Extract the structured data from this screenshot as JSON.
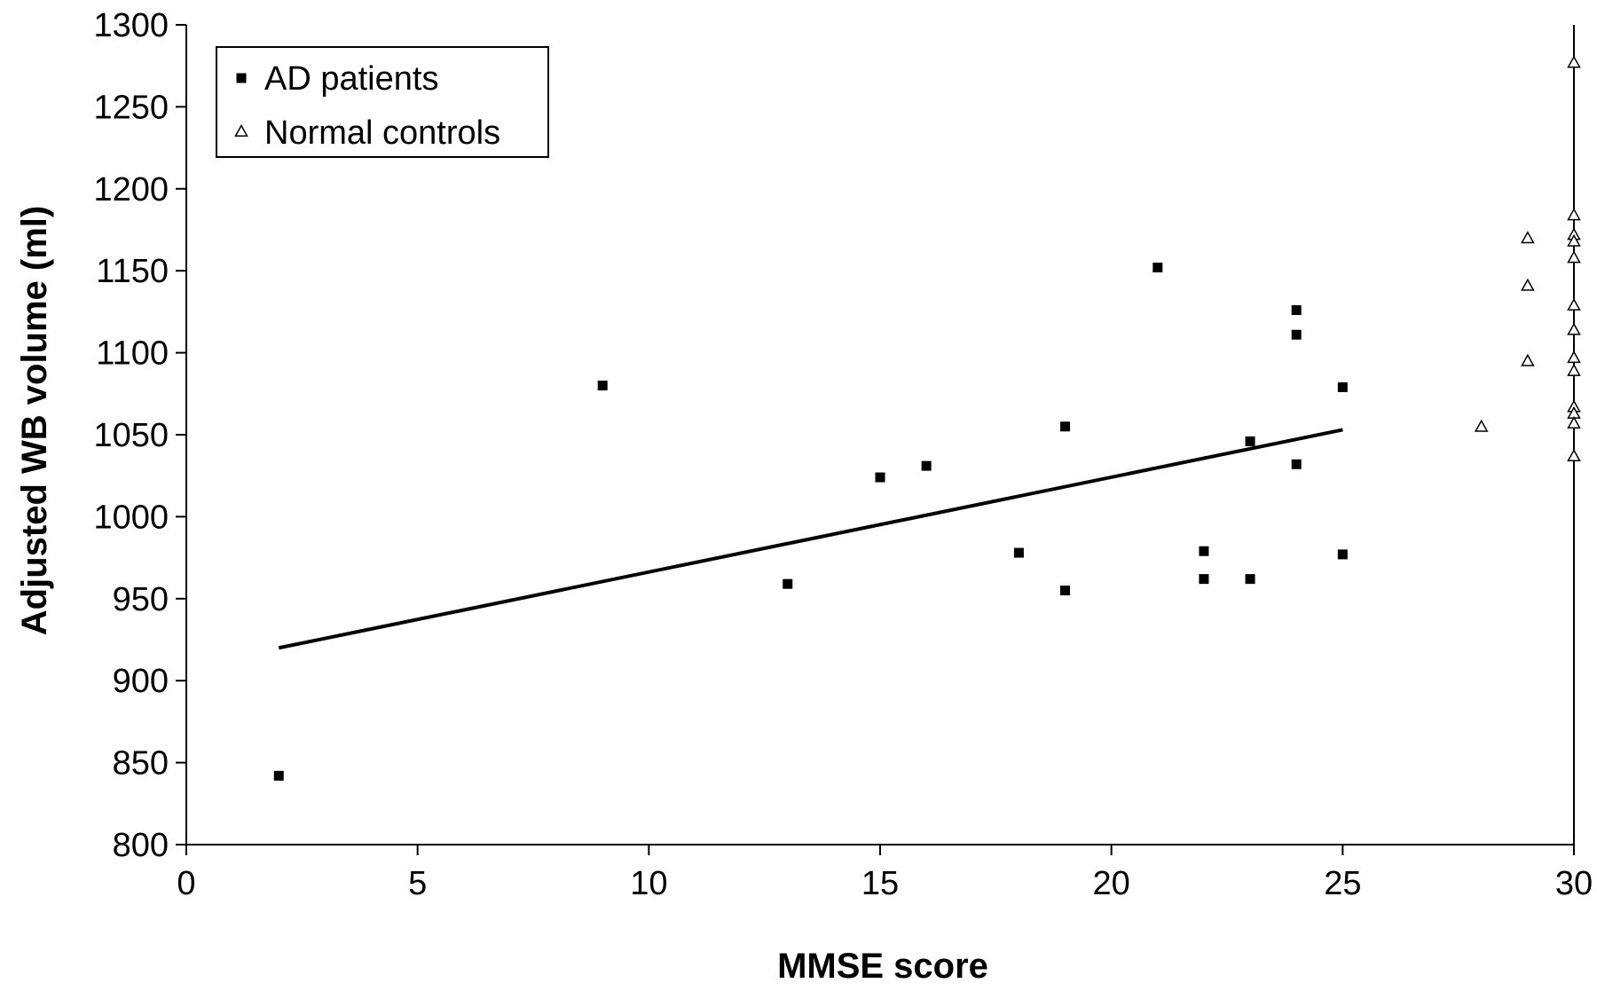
{
  "chart_data": {
    "type": "scatter",
    "xlabel": "MMSE score",
    "ylabel": "Adjusted WB volume (ml)",
    "xlim": [
      0,
      30
    ],
    "ylim": [
      800,
      1300
    ],
    "xticks": [
      "0",
      "5",
      "10",
      "15",
      "20",
      "25",
      "30"
    ],
    "yticks": [
      "800",
      "850",
      "900",
      "950",
      "1000",
      "1050",
      "1100",
      "1150",
      "1200",
      "1250",
      "1300"
    ],
    "grid": false,
    "legend_position": "top-left",
    "series": [
      {
        "name": "AD patients",
        "marker": "filled-square",
        "color": "#000000",
        "points": [
          [
            2,
            842
          ],
          [
            9,
            1080
          ],
          [
            13,
            959
          ],
          [
            15,
            1024
          ],
          [
            16,
            1031
          ],
          [
            18,
            978
          ],
          [
            19,
            1055
          ],
          [
            19,
            955
          ],
          [
            21,
            1152
          ],
          [
            22,
            979
          ],
          [
            22,
            962
          ],
          [
            23,
            1046
          ],
          [
            23,
            962
          ],
          [
            24,
            1126
          ],
          [
            24,
            1111
          ],
          [
            24,
            1032
          ],
          [
            25,
            1079
          ],
          [
            25,
            977
          ]
        ]
      },
      {
        "name": "Normal controls",
        "marker": "open-triangle",
        "color": "#000000",
        "points": [
          [
            28,
            1055
          ],
          [
            29,
            1170
          ],
          [
            29,
            1141
          ],
          [
            29,
            1095
          ],
          [
            30,
            1277
          ],
          [
            30,
            1184
          ],
          [
            30,
            1172
          ],
          [
            30,
            1168
          ],
          [
            30,
            1158
          ],
          [
            30,
            1129
          ],
          [
            30,
            1114
          ],
          [
            30,
            1097
          ],
          [
            30,
            1089
          ],
          [
            30,
            1067
          ],
          [
            30,
            1063
          ],
          [
            30,
            1057
          ],
          [
            30,
            1037
          ]
        ]
      }
    ],
    "trendline": {
      "series": "AD patients",
      "points": [
        [
          2,
          920
        ],
        [
          25,
          1053
        ]
      ]
    }
  }
}
